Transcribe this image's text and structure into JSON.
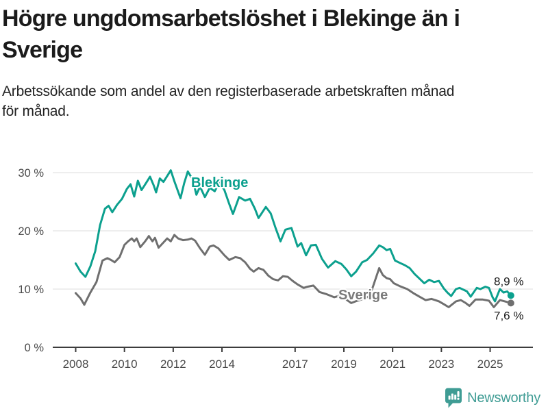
{
  "header": {
    "title_line1": "Högre ungdomsarbetslöshet i Blekinge än i",
    "title_line2": "Sverige",
    "subtitle_line1": "Arbetssökande som andel av den registerbaserade arbetskraften månad",
    "subtitle_line2": "för månad."
  },
  "footer": {
    "brand": "Newsworthy",
    "brand_color": "#3f9c94",
    "logo_icon": "bar-chart-speech-bubble"
  },
  "chart_data": {
    "type": "line",
    "title": "Högre ungdomsarbetslöshet i Blekinge än i Sverige",
    "subtitle": "Arbetssökande som andel av den registerbaserade arbetskraften månad för månad.",
    "unit": "%",
    "grid": "horizontal",
    "legend": "inline-labels",
    "x_axis": {
      "ticks": [
        2008,
        2010,
        2012,
        2014,
        2017,
        2019,
        2021,
        2023,
        2025
      ],
      "range": [
        2008,
        2025.9
      ]
    },
    "y_axis": {
      "ticks": [
        0,
        10,
        20,
        30
      ],
      "tick_labels": [
        "0 %",
        "10 %",
        "20 %",
        "30 %"
      ],
      "range": [
        0,
        32
      ]
    },
    "colors": {
      "blekinge": "#0ca08e",
      "sverige_line": "#6f6f6f",
      "sverige_label": "#7a7a7a",
      "gridline": "#dcdcdc",
      "axis": "#3c3c3c"
    },
    "series": [
      {
        "name": "Blekinge",
        "color": "#0ca08e",
        "label_color": "#0ca08e",
        "end_label": "8,9 %",
        "end_value": 8.9,
        "points": [
          [
            2008.0,
            14.4
          ],
          [
            2008.2,
            13.0
          ],
          [
            2008.4,
            12.1
          ],
          [
            2008.6,
            13.9
          ],
          [
            2008.8,
            16.5
          ],
          [
            2009.0,
            21.0
          ],
          [
            2009.2,
            23.8
          ],
          [
            2009.35,
            24.3
          ],
          [
            2009.5,
            23.2
          ],
          [
            2009.7,
            24.5
          ],
          [
            2009.9,
            25.5
          ],
          [
            2010.1,
            27.2
          ],
          [
            2010.25,
            28.0
          ],
          [
            2010.4,
            25.9
          ],
          [
            2010.55,
            28.6
          ],
          [
            2010.7,
            27.0
          ],
          [
            2010.9,
            28.3
          ],
          [
            2011.05,
            29.3
          ],
          [
            2011.2,
            27.8
          ],
          [
            2011.3,
            26.6
          ],
          [
            2011.45,
            29.0
          ],
          [
            2011.6,
            28.4
          ],
          [
            2011.75,
            29.4
          ],
          [
            2011.9,
            30.4
          ],
          [
            2012.05,
            28.5
          ],
          [
            2012.3,
            25.6
          ],
          [
            2012.45,
            28.2
          ],
          [
            2012.6,
            30.2
          ],
          [
            2012.8,
            28.8
          ],
          [
            2012.95,
            26.2
          ],
          [
            2013.1,
            27.6
          ],
          [
            2013.3,
            25.8
          ],
          [
            2013.5,
            27.4
          ],
          [
            2013.7,
            26.8
          ],
          [
            2013.9,
            28.3
          ],
          [
            2014.1,
            27.0
          ],
          [
            2014.3,
            24.6
          ],
          [
            2014.45,
            22.9
          ],
          [
            2014.7,
            25.8
          ],
          [
            2014.95,
            25.2
          ],
          [
            2015.15,
            25.5
          ],
          [
            2015.35,
            23.8
          ],
          [
            2015.5,
            22.2
          ],
          [
            2015.8,
            24.1
          ],
          [
            2016.0,
            23.0
          ],
          [
            2016.2,
            20.5
          ],
          [
            2016.4,
            18.2
          ],
          [
            2016.6,
            20.2
          ],
          [
            2016.85,
            20.5
          ],
          [
            2017.1,
            17.3
          ],
          [
            2017.25,
            17.9
          ],
          [
            2017.45,
            15.8
          ],
          [
            2017.65,
            17.5
          ],
          [
            2017.85,
            17.6
          ],
          [
            2018.1,
            15.2
          ],
          [
            2018.35,
            13.7
          ],
          [
            2018.65,
            14.8
          ],
          [
            2018.9,
            14.3
          ],
          [
            2019.1,
            13.4
          ],
          [
            2019.3,
            12.2
          ],
          [
            2019.5,
            13.0
          ],
          [
            2019.75,
            14.6
          ],
          [
            2019.95,
            15.0
          ],
          [
            2020.2,
            16.1
          ],
          [
            2020.45,
            17.5
          ],
          [
            2020.6,
            17.2
          ],
          [
            2020.75,
            16.7
          ],
          [
            2020.9,
            16.9
          ],
          [
            2021.1,
            14.9
          ],
          [
            2021.3,
            14.5
          ],
          [
            2021.5,
            14.1
          ],
          [
            2021.7,
            13.6
          ],
          [
            2021.9,
            12.6
          ],
          [
            2022.1,
            11.8
          ],
          [
            2022.3,
            11.0
          ],
          [
            2022.5,
            11.6
          ],
          [
            2022.7,
            11.2
          ],
          [
            2022.9,
            11.4
          ],
          [
            2023.1,
            10.1
          ],
          [
            2023.25,
            9.4
          ],
          [
            2023.4,
            8.8
          ],
          [
            2023.6,
            10.0
          ],
          [
            2023.75,
            10.2
          ],
          [
            2023.9,
            9.9
          ],
          [
            2024.05,
            9.6
          ],
          [
            2024.2,
            8.7
          ],
          [
            2024.45,
            10.2
          ],
          [
            2024.6,
            10.0
          ],
          [
            2024.8,
            10.4
          ],
          [
            2024.95,
            10.2
          ],
          [
            2025.1,
            8.6
          ],
          [
            2025.2,
            7.9
          ],
          [
            2025.4,
            10.0
          ],
          [
            2025.55,
            9.4
          ],
          [
            2025.7,
            9.6
          ],
          [
            2025.85,
            8.9
          ]
        ]
      },
      {
        "name": "Sverige",
        "color": "#6f6f6f",
        "label_color": "#7a7a7a",
        "end_label": "7,6 %",
        "end_value": 7.6,
        "points": [
          [
            2008.0,
            9.3
          ],
          [
            2008.2,
            8.4
          ],
          [
            2008.35,
            7.3
          ],
          [
            2008.6,
            9.4
          ],
          [
            2008.85,
            11.2
          ],
          [
            2009.1,
            14.9
          ],
          [
            2009.3,
            15.3
          ],
          [
            2009.45,
            15.0
          ],
          [
            2009.6,
            14.6
          ],
          [
            2009.8,
            15.5
          ],
          [
            2010.0,
            17.6
          ],
          [
            2010.15,
            18.2
          ],
          [
            2010.3,
            18.7
          ],
          [
            2010.4,
            18.2
          ],
          [
            2010.5,
            18.7
          ],
          [
            2010.65,
            17.2
          ],
          [
            2010.85,
            18.2
          ],
          [
            2011.0,
            19.1
          ],
          [
            2011.15,
            18.2
          ],
          [
            2011.25,
            18.8
          ],
          [
            2011.4,
            17.1
          ],
          [
            2011.6,
            18.0
          ],
          [
            2011.75,
            18.7
          ],
          [
            2011.9,
            18.2
          ],
          [
            2012.05,
            19.3
          ],
          [
            2012.2,
            18.7
          ],
          [
            2012.4,
            18.4
          ],
          [
            2012.6,
            18.5
          ],
          [
            2012.75,
            18.7
          ],
          [
            2012.9,
            18.3
          ],
          [
            2013.1,
            17.0
          ],
          [
            2013.3,
            15.9
          ],
          [
            2013.5,
            17.3
          ],
          [
            2013.65,
            17.5
          ],
          [
            2013.85,
            17.0
          ],
          [
            2014.1,
            15.8
          ],
          [
            2014.3,
            15.0
          ],
          [
            2014.55,
            15.5
          ],
          [
            2014.75,
            15.3
          ],
          [
            2014.95,
            14.6
          ],
          [
            2015.15,
            13.5
          ],
          [
            2015.3,
            13.0
          ],
          [
            2015.5,
            13.6
          ],
          [
            2015.7,
            13.3
          ],
          [
            2015.9,
            12.3
          ],
          [
            2016.1,
            11.7
          ],
          [
            2016.3,
            11.5
          ],
          [
            2016.5,
            12.2
          ],
          [
            2016.7,
            12.1
          ],
          [
            2016.9,
            11.4
          ],
          [
            2017.1,
            10.8
          ],
          [
            2017.35,
            10.2
          ],
          [
            2017.5,
            10.4
          ],
          [
            2017.75,
            10.6
          ],
          [
            2018.0,
            9.5
          ],
          [
            2018.3,
            9.1
          ],
          [
            2018.6,
            8.6
          ],
          [
            2018.85,
            8.9
          ],
          [
            2019.1,
            8.2
          ],
          [
            2019.3,
            7.6
          ],
          [
            2019.55,
            8.0
          ],
          [
            2019.8,
            8.3
          ],
          [
            2020.05,
            8.8
          ],
          [
            2020.2,
            10.5
          ],
          [
            2020.45,
            13.6
          ],
          [
            2020.6,
            12.4
          ],
          [
            2020.75,
            11.9
          ],
          [
            2020.9,
            11.7
          ],
          [
            2021.05,
            11.0
          ],
          [
            2021.3,
            10.5
          ],
          [
            2021.6,
            10.0
          ],
          [
            2021.85,
            9.3
          ],
          [
            2022.1,
            8.7
          ],
          [
            2022.35,
            8.1
          ],
          [
            2022.6,
            8.3
          ],
          [
            2022.9,
            7.9
          ],
          [
            2023.1,
            7.4
          ],
          [
            2023.3,
            6.9
          ],
          [
            2023.6,
            7.9
          ],
          [
            2023.8,
            8.1
          ],
          [
            2024.0,
            7.6
          ],
          [
            2024.15,
            7.1
          ],
          [
            2024.4,
            8.2
          ],
          [
            2024.7,
            8.2
          ],
          [
            2024.95,
            8.0
          ],
          [
            2025.15,
            6.9
          ],
          [
            2025.4,
            8.1
          ],
          [
            2025.6,
            7.9
          ],
          [
            2025.85,
            7.6
          ]
        ]
      }
    ]
  }
}
